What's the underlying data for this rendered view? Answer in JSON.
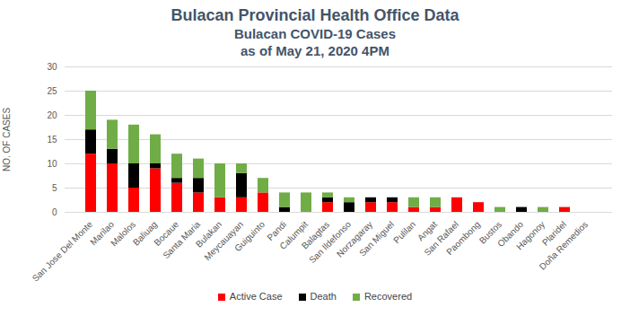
{
  "chart_data": {
    "type": "bar",
    "stacked": true,
    "title": "Bulacan Provincial Health Office Data",
    "subtitle": [
      "Bulacan COVID-19 Cases",
      "as of May 21, 2020 4PM"
    ],
    "y_label": "NO. OF CASES",
    "categories": [
      "San Jose Del Monte",
      "Marilao",
      "Malolos",
      "Baliuag",
      "Bocaue",
      "Santa Maria",
      "Bulakan",
      "Meycauayan",
      "Guiguinto",
      "Pandi",
      "Calumpit",
      "Balagtas",
      "San Ildefonso",
      "Norzagaray",
      "San Miguel",
      "Pulilan",
      "Angat",
      "San Rafael",
      "Paombong",
      "Bustos",
      "Obando",
      "Hagonoy",
      "Plaridel",
      "Doña Remedios"
    ],
    "series": [
      {
        "name": "Active Case",
        "color": "#ff0000",
        "values": [
          12,
          10,
          5,
          9,
          6,
          4,
          3,
          3,
          4,
          0,
          0,
          2,
          0,
          2,
          2,
          1,
          1,
          3,
          2,
          0,
          0,
          0,
          1,
          0
        ]
      },
      {
        "name": "Death",
        "color": "#000000",
        "values": [
          5,
          3,
          5,
          1,
          1,
          3,
          0,
          5,
          0,
          1,
          0,
          1,
          2,
          1,
          1,
          0,
          0,
          0,
          0,
          0,
          1,
          0,
          0,
          0
        ]
      },
      {
        "name": "Recovered",
        "color": "#70ad47",
        "values": [
          8,
          6,
          8,
          6,
          5,
          4,
          7,
          2,
          3,
          3,
          4,
          1,
          1,
          0,
          0,
          2,
          2,
          0,
          0,
          1,
          0,
          1,
          0,
          0
        ]
      }
    ],
    "ylim": [
      0,
      30
    ],
    "yticks": [
      0,
      5,
      10,
      15,
      20,
      25,
      30
    ],
    "grid": true,
    "legend": "bottom"
  }
}
